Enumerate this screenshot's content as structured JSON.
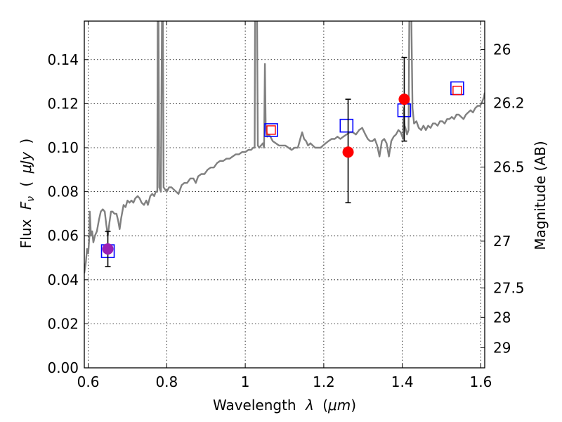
{
  "chart_data": {
    "type": "line",
    "title": "",
    "xlabel": "Wavelength",
    "xlabel_symbol": "λ",
    "xlabel_unit_open": "(",
    "xlabel_unit": "μm",
    "xlabel_unit_close": ")",
    "ylabel": "Flux",
    "ylabel_symbol": "F",
    "ylabel_symbol_sub": "ν",
    "ylabel_unit_open": "(",
    "ylabel_unit": "μJy",
    "ylabel_unit_close": ")",
    "y2label": "Magnitude (AB)",
    "xlim": [
      0.59,
      1.61
    ],
    "ylim": [
      0.0,
      0.1575
    ],
    "grid": true,
    "x_ticks": [
      {
        "value": 0.6,
        "label": "0.6"
      },
      {
        "value": 0.8,
        "label": "0.8"
      },
      {
        "value": 1.0,
        "label": "1"
      },
      {
        "value": 1.2,
        "label": "1.2"
      },
      {
        "value": 1.4,
        "label": "1.4"
      },
      {
        "value": 1.6,
        "label": "1.6"
      }
    ],
    "y_ticks": [
      {
        "value": 0.0,
        "label": "0.00"
      },
      {
        "value": 0.02,
        "label": "0.02"
      },
      {
        "value": 0.04,
        "label": "0.04"
      },
      {
        "value": 0.06,
        "label": "0.06"
      },
      {
        "value": 0.08,
        "label": "0.08"
      },
      {
        "value": 0.1,
        "label": "0.10"
      },
      {
        "value": 0.12,
        "label": "0.12"
      },
      {
        "value": 0.14,
        "label": "0.14"
      }
    ],
    "y2_ticks": [
      {
        "value": 26,
        "label": "26"
      },
      {
        "value": 26.2,
        "label": "26.2"
      },
      {
        "value": 26.5,
        "label": "26.5"
      },
      {
        "value": 27,
        "label": "27"
      },
      {
        "value": 27.5,
        "label": "27.5"
      },
      {
        "value": 28,
        "label": "28"
      },
      {
        "value": 29,
        "label": "29"
      }
    ],
    "series": [
      {
        "kind": "line",
        "color": "#808080",
        "points": [
          [
            0.59,
            0.043
          ],
          [
            0.594,
            0.048
          ],
          [
            0.597,
            0.054
          ],
          [
            0.6,
            0.052
          ],
          [
            0.603,
            0.06
          ],
          [
            0.604,
            0.071
          ],
          [
            0.607,
            0.06
          ],
          [
            0.61,
            0.062
          ],
          [
            0.613,
            0.057
          ],
          [
            0.617,
            0.06
          ],
          [
            0.622,
            0.062
          ],
          [
            0.627,
            0.067
          ],
          [
            0.632,
            0.071
          ],
          [
            0.637,
            0.072
          ],
          [
            0.642,
            0.071
          ],
          [
            0.646,
            0.065
          ],
          [
            0.65,
            0.06
          ],
          [
            0.654,
            0.066
          ],
          [
            0.658,
            0.071
          ],
          [
            0.662,
            0.071
          ],
          [
            0.667,
            0.07
          ],
          [
            0.672,
            0.07
          ],
          [
            0.676,
            0.067
          ],
          [
            0.68,
            0.063
          ],
          [
            0.684,
            0.068
          ],
          [
            0.69,
            0.074
          ],
          [
            0.695,
            0.073
          ],
          [
            0.7,
            0.076
          ],
          [
            0.705,
            0.075
          ],
          [
            0.71,
            0.076
          ],
          [
            0.715,
            0.075
          ],
          [
            0.72,
            0.077
          ],
          [
            0.726,
            0.078
          ],
          [
            0.731,
            0.077
          ],
          [
            0.736,
            0.075
          ],
          [
            0.742,
            0.074
          ],
          [
            0.748,
            0.076
          ],
          [
            0.752,
            0.074
          ],
          [
            0.758,
            0.078
          ],
          [
            0.763,
            0.079
          ],
          [
            0.768,
            0.078
          ],
          [
            0.772,
            0.08
          ],
          [
            0.776,
            0.08
          ],
          [
            0.777,
            0.16
          ],
          [
            0.779,
            0.16
          ],
          [
            0.781,
            0.082
          ],
          [
            0.785,
            0.08
          ],
          [
            0.788,
            0.16
          ],
          [
            0.79,
            0.16
          ],
          [
            0.792,
            0.082
          ],
          [
            0.796,
            0.081
          ],
          [
            0.8,
            0.08
          ],
          [
            0.806,
            0.082
          ],
          [
            0.812,
            0.082
          ],
          [
            0.818,
            0.081
          ],
          [
            0.824,
            0.08
          ],
          [
            0.83,
            0.079
          ],
          [
            0.838,
            0.083
          ],
          [
            0.845,
            0.084
          ],
          [
            0.852,
            0.084
          ],
          [
            0.86,
            0.086
          ],
          [
            0.868,
            0.086
          ],
          [
            0.874,
            0.084
          ],
          [
            0.88,
            0.087
          ],
          [
            0.888,
            0.088
          ],
          [
            0.896,
            0.088
          ],
          [
            0.904,
            0.09
          ],
          [
            0.912,
            0.091
          ],
          [
            0.92,
            0.091
          ],
          [
            0.928,
            0.093
          ],
          [
            0.936,
            0.094
          ],
          [
            0.944,
            0.094
          ],
          [
            0.952,
            0.095
          ],
          [
            0.96,
            0.095
          ],
          [
            0.968,
            0.096
          ],
          [
            0.976,
            0.097
          ],
          [
            0.984,
            0.097
          ],
          [
            0.992,
            0.098
          ],
          [
            1.0,
            0.098
          ],
          [
            1.008,
            0.099
          ],
          [
            1.015,
            0.099
          ],
          [
            1.02,
            0.1
          ],
          [
            1.024,
            0.1
          ],
          [
            1.025,
            0.16
          ],
          [
            1.03,
            0.16
          ],
          [
            1.032,
            0.101
          ],
          [
            1.036,
            0.1
          ],
          [
            1.04,
            0.101
          ],
          [
            1.045,
            0.102
          ],
          [
            1.048,
            0.1
          ],
          [
            1.05,
            0.138
          ],
          [
            1.052,
            0.11
          ],
          [
            1.056,
            0.105
          ],
          [
            1.06,
            0.106
          ],
          [
            1.064,
            0.105
          ],
          [
            1.07,
            0.103
          ],
          [
            1.078,
            0.102
          ],
          [
            1.086,
            0.101
          ],
          [
            1.094,
            0.101
          ],
          [
            1.102,
            0.101
          ],
          [
            1.11,
            0.1
          ],
          [
            1.118,
            0.099
          ],
          [
            1.126,
            0.1
          ],
          [
            1.134,
            0.1
          ],
          [
            1.14,
            0.104
          ],
          [
            1.145,
            0.107
          ],
          [
            1.15,
            0.104
          ],
          [
            1.155,
            0.103
          ],
          [
            1.16,
            0.101
          ],
          [
            1.166,
            0.102
          ],
          [
            1.172,
            0.101
          ],
          [
            1.178,
            0.1
          ],
          [
            1.185,
            0.1
          ],
          [
            1.192,
            0.1
          ],
          [
            1.198,
            0.101
          ],
          [
            1.205,
            0.102
          ],
          [
            1.212,
            0.103
          ],
          [
            1.22,
            0.104
          ],
          [
            1.228,
            0.104
          ],
          [
            1.235,
            0.105
          ],
          [
            1.242,
            0.104
          ],
          [
            1.25,
            0.105
          ],
          [
            1.258,
            0.106
          ],
          [
            1.266,
            0.107
          ],
          [
            1.274,
            0.107
          ],
          [
            1.282,
            0.106
          ],
          [
            1.29,
            0.108
          ],
          [
            1.298,
            0.109
          ],
          [
            1.306,
            0.106
          ],
          [
            1.312,
            0.104
          ],
          [
            1.318,
            0.103
          ],
          [
            1.324,
            0.103
          ],
          [
            1.33,
            0.104
          ],
          [
            1.336,
            0.101
          ],
          [
            1.342,
            0.096
          ],
          [
            1.348,
            0.103
          ],
          [
            1.354,
            0.104
          ],
          [
            1.36,
            0.102
          ],
          [
            1.366,
            0.096
          ],
          [
            1.372,
            0.103
          ],
          [
            1.378,
            0.105
          ],
          [
            1.384,
            0.106
          ],
          [
            1.39,
            0.108
          ],
          [
            1.396,
            0.107
          ],
          [
            1.402,
            0.104
          ],
          [
            1.404,
            0.118
          ],
          [
            1.406,
            0.11
          ],
          [
            1.408,
            0.109
          ],
          [
            1.412,
            0.106
          ],
          [
            1.416,
            0.108
          ],
          [
            1.418,
            0.16
          ],
          [
            1.423,
            0.16
          ],
          [
            1.426,
            0.118
          ],
          [
            1.43,
            0.111
          ],
          [
            1.436,
            0.112
          ],
          [
            1.442,
            0.109
          ],
          [
            1.448,
            0.108
          ],
          [
            1.454,
            0.11
          ],
          [
            1.46,
            0.108
          ],
          [
            1.466,
            0.11
          ],
          [
            1.472,
            0.109
          ],
          [
            1.478,
            0.111
          ],
          [
            1.484,
            0.111
          ],
          [
            1.49,
            0.11
          ],
          [
            1.496,
            0.112
          ],
          [
            1.502,
            0.112
          ],
          [
            1.508,
            0.111
          ],
          [
            1.514,
            0.113
          ],
          [
            1.52,
            0.113
          ],
          [
            1.526,
            0.114
          ],
          [
            1.532,
            0.113
          ],
          [
            1.538,
            0.115
          ],
          [
            1.544,
            0.115
          ],
          [
            1.55,
            0.114
          ],
          [
            1.556,
            0.113
          ],
          [
            1.562,
            0.115
          ],
          [
            1.568,
            0.116
          ],
          [
            1.574,
            0.117
          ],
          [
            1.58,
            0.116
          ],
          [
            1.586,
            0.118
          ],
          [
            1.592,
            0.119
          ],
          [
            1.598,
            0.119
          ],
          [
            1.604,
            0.121
          ],
          [
            1.608,
            0.123
          ],
          [
            1.61,
            0.125
          ]
        ]
      },
      {
        "kind": "square_marker",
        "edge_color": "#0000ff",
        "points": [
          [
            0.65,
            0.053
          ],
          [
            1.066,
            0.108
          ],
          [
            1.258,
            0.11
          ],
          [
            1.405,
            0.117
          ],
          [
            1.54,
            0.127
          ]
        ]
      },
      {
        "kind": "small_square_marker",
        "edge_color": "#ff0000",
        "points": [
          [
            1.066,
            0.108
          ],
          [
            1.54,
            0.126
          ]
        ]
      },
      {
        "kind": "circle_errorbar",
        "color": "#ff0000",
        "points": [
          {
            "x": 1.262,
            "y": 0.098,
            "err_low": 0.075,
            "err_high": 0.122
          },
          {
            "x": 1.405,
            "y": 0.122,
            "err_low": 0.103,
            "err_high": 0.141
          }
        ]
      },
      {
        "kind": "circle_errorbar",
        "color": "#9b1fb4",
        "points": [
          {
            "x": 0.65,
            "y": 0.054,
            "err_low": 0.046,
            "err_high": 0.062
          }
        ]
      }
    ]
  }
}
